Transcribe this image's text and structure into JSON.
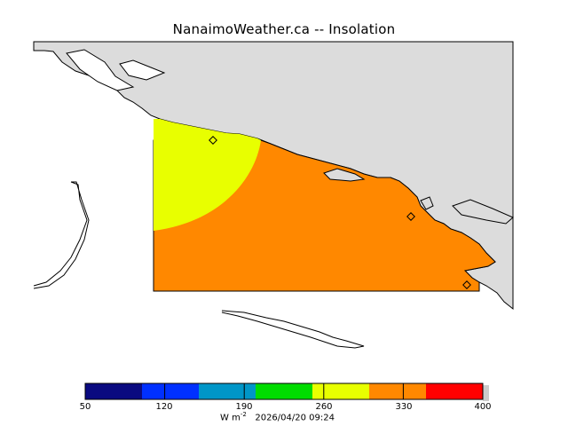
{
  "title": "NanaimoWeather.ca -- Insolation",
  "colors": {
    "land": "#dcdcdc",
    "ocean": "#ffffff",
    "coast": "#000000",
    "field_low": "#e8ff00",
    "field_high": "#ff8800"
  },
  "legend": {
    "bins": [
      {
        "from": 50,
        "to": 100,
        "color": "#0a0a80"
      },
      {
        "from": 100,
        "to": 150,
        "color": "#0030ff"
      },
      {
        "from": 150,
        "to": 200,
        "color": "#0096c8"
      },
      {
        "from": 200,
        "to": 250,
        "color": "#00dc00"
      },
      {
        "from": 250,
        "to": 300,
        "color": "#e8ff00"
      },
      {
        "from": 300,
        "to": 350,
        "color": "#ff8800"
      },
      {
        "from": 350,
        "to": 400,
        "color": "#ff0000"
      }
    ],
    "tick_labels": [
      "50",
      "120",
      "190",
      "260",
      "330",
      "400"
    ],
    "unit_prefix": "W m",
    "unit_exponent": "-2",
    "timestamp": "2026/04/20 09:24"
  }
}
